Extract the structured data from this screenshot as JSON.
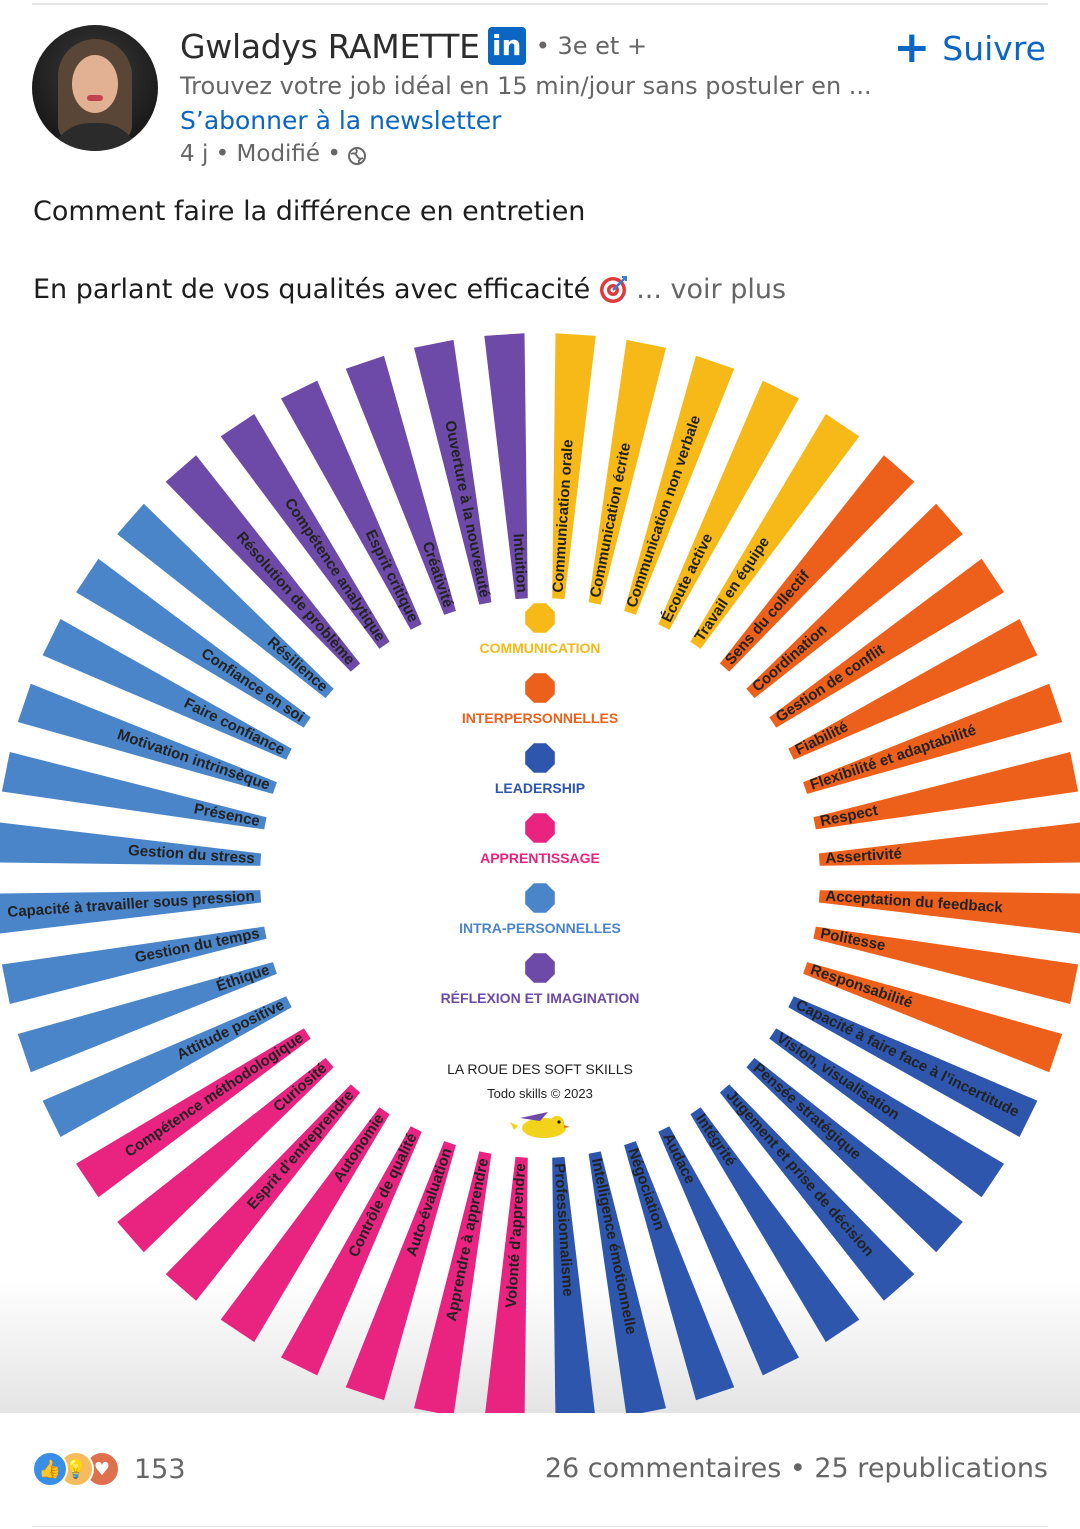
{
  "post": {
    "author_name": "Gwladys RAMETTE",
    "author_badge": "in",
    "degree": "• 3e et +",
    "headline": "Trouvez votre job idéal en 15 min/jour sans postuler en ...",
    "newsletter": "S’abonner à la newsletter",
    "meta": "4 j • Modifié •",
    "follow_label": "Suivre",
    "follow_plus": "+",
    "text_line1": "Comment faire la différence en entretien",
    "text_line2": "En parlant de vos qualités avec efficacité",
    "see_more": "... voir plus"
  },
  "footer": {
    "reaction_count": "153",
    "stats": "26 commentaires • 25 republications"
  },
  "colors": {
    "communication": "#f7b918",
    "interpersonnelles": "#ec601b",
    "leadership": "#2e56ad",
    "apprentissage": "#e82380",
    "intra": "#4a85c9",
    "reflexion": "#6e4aa8",
    "linkedin_blue": "#0a66c2"
  },
  "chart_data": {
    "type": "radial-bar",
    "title": "LA ROUE DES SOFT SKILLS",
    "subtitle": "Todo skills © 2023",
    "legend": [
      {
        "key": "communication",
        "label": "COMMUNICATION"
      },
      {
        "key": "interpersonnelles",
        "label": "INTERPERSONNELLES"
      },
      {
        "key": "leadership",
        "label": "LEADERSHIP"
      },
      {
        "key": "apprentissage",
        "label": "APPRENTISSAGE"
      },
      {
        "key": "intra",
        "label": "INTRA-PERSONNELLES"
      },
      {
        "key": "reflexion",
        "label": "RÉFLEXION ET IMAGINATION"
      }
    ],
    "spokes": [
      {
        "label": "Communication orale",
        "category": "communication"
      },
      {
        "label": "Communication écrite",
        "category": "communication"
      },
      {
        "label": "Communication non verbale",
        "category": "communication"
      },
      {
        "label": "Écoute active",
        "category": "communication"
      },
      {
        "label": "Travail en équipe",
        "category": "communication"
      },
      {
        "label": "Sens du collectif",
        "category": "interpersonnelles"
      },
      {
        "label": "Coordination",
        "category": "interpersonnelles"
      },
      {
        "label": "Gestion de conflit",
        "category": "interpersonnelles"
      },
      {
        "label": "Fiabilité",
        "category": "interpersonnelles"
      },
      {
        "label": "Flexibilité et adaptabilité",
        "category": "interpersonnelles"
      },
      {
        "label": "Respect",
        "category": "interpersonnelles"
      },
      {
        "label": "Assertivité",
        "category": "interpersonnelles"
      },
      {
        "label": "Acceptation du feedback",
        "category": "interpersonnelles"
      },
      {
        "label": "Politesse",
        "category": "interpersonnelles"
      },
      {
        "label": "Responsabilité",
        "category": "interpersonnelles"
      },
      {
        "label": "Capacité à faire face à l’incertitude",
        "category": "leadership"
      },
      {
        "label": "Vision, visualisation",
        "category": "leadership"
      },
      {
        "label": "Pensée stratégique",
        "category": "leadership"
      },
      {
        "label": "Jugement et prise de décision",
        "category": "leadership"
      },
      {
        "label": "Intégrité",
        "category": "leadership"
      },
      {
        "label": "Audace",
        "category": "leadership"
      },
      {
        "label": "Négociation",
        "category": "leadership"
      },
      {
        "label": "Intelligence émotionnelle",
        "category": "leadership"
      },
      {
        "label": "Professionnalisme",
        "category": "leadership"
      },
      {
        "label": "Volonté d’apprendre",
        "category": "apprentissage"
      },
      {
        "label": "Apprendre à apprendre",
        "category": "apprentissage"
      },
      {
        "label": "Auto-évaluation",
        "category": "apprentissage"
      },
      {
        "label": "Contrôle de qualité",
        "category": "apprentissage"
      },
      {
        "label": "Autonomie",
        "category": "apprentissage"
      },
      {
        "label": "Esprit d’entreprendre",
        "category": "apprentissage"
      },
      {
        "label": "Curiosité",
        "category": "apprentissage"
      },
      {
        "label": "Compétence méthodologique",
        "category": "apprentissage"
      },
      {
        "label": "Attitude positive",
        "category": "intra"
      },
      {
        "label": "Éthique",
        "category": "intra"
      },
      {
        "label": "Gestion du temps",
        "category": "intra"
      },
      {
        "label": "Capacité à travailler sous pression",
        "category": "intra"
      },
      {
        "label": "Gestion du stress",
        "category": "intra"
      },
      {
        "label": "Présence",
        "category": "intra"
      },
      {
        "label": "Motivation intrinsèque",
        "category": "intra"
      },
      {
        "label": "Faire confiance",
        "category": "intra"
      },
      {
        "label": "Confiance en soi",
        "category": "intra"
      },
      {
        "label": "Résilience",
        "category": "intra"
      },
      {
        "label": "Résolution de problème",
        "category": "reflexion"
      },
      {
        "label": "Compétence analytique",
        "category": "reflexion"
      },
      {
        "label": "Esprit critique",
        "category": "reflexion"
      },
      {
        "label": "Créativité",
        "category": "reflexion"
      },
      {
        "label": "Ouverture à la nouveauté",
        "category": "reflexion"
      },
      {
        "label": "Intuition",
        "category": "reflexion"
      }
    ]
  }
}
